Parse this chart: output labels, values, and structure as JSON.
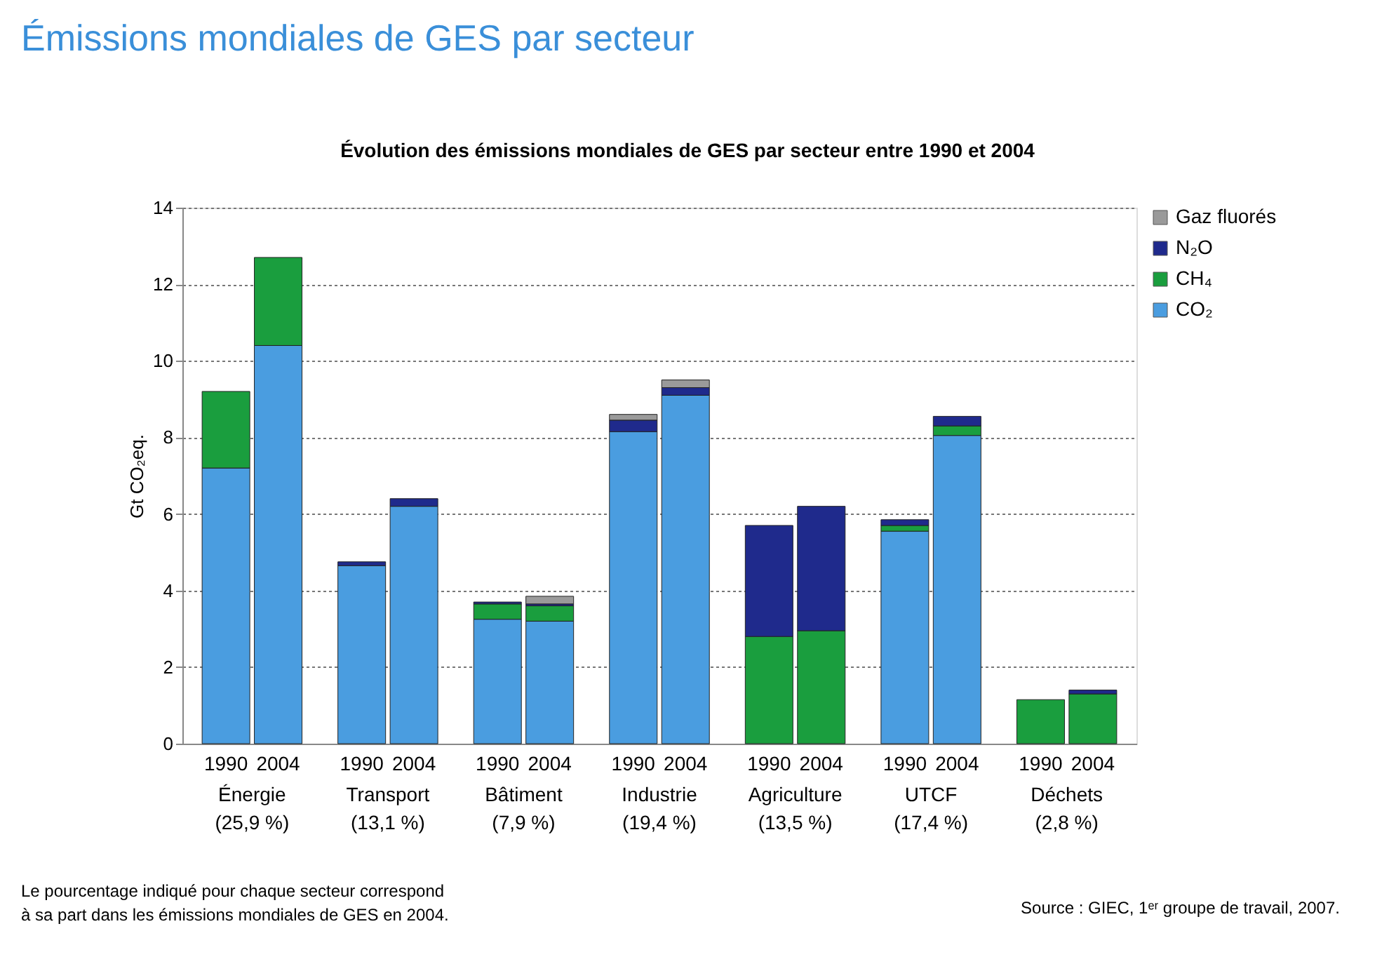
{
  "chart_data": {
    "type": "bar",
    "stacked": true,
    "title": "Émissions mondiales de GES par secteur",
    "subtitle": "Évolution des émissions mondiales de GES par secteur entre 1990 et 2004",
    "ylabel": "Gt CO₂eq.",
    "categories": [
      "1990",
      "2004",
      "1990",
      "2004",
      "1990",
      "2004",
      "1990",
      "2004",
      "1990",
      "2004",
      "1990",
      "2004",
      "1990",
      "2004"
    ],
    "series": [
      {
        "name": "CO₂",
        "color": "#4a9de0",
        "values": [
          7.2,
          10.4,
          4.65,
          6.2,
          3.25,
          3.2,
          8.15,
          9.1,
          null,
          null,
          5.55,
          8.05,
          null,
          null
        ]
      },
      {
        "name": "CH₄",
        "color": "#1a9e3e",
        "values": [
          2.0,
          2.3,
          null,
          null,
          0.4,
          0.4,
          null,
          null,
          2.8,
          2.95,
          0.15,
          0.25,
          1.15,
          1.3
        ]
      },
      {
        "name": "N₂O",
        "color": "#1f2a8c",
        "values": [
          null,
          null,
          0.1,
          0.2,
          0.05,
          0.05,
          0.3,
          0.2,
          2.9,
          3.25,
          0.15,
          0.25,
          null,
          0.1
        ]
      },
      {
        "name": "Gaz fluorés",
        "color": "#9a9a9a",
        "values": [
          null,
          null,
          null,
          null,
          null,
          0.2,
          0.15,
          0.2,
          null,
          null,
          null,
          null,
          null,
          null
        ]
      }
    ],
    "ylim": [
      0,
      14
    ],
    "yticks": [
      0,
      2,
      4,
      6,
      8,
      10,
      12,
      14
    ],
    "grid": "y",
    "legend": "top right",
    "annotations": [
      "Énergie\n(25,9 %)",
      "Transport\n(13,1 %)",
      "Bâtiment\n(7,9 %)",
      "Industrie\n(19,4 %)",
      "Agriculture\n(13,5 %)",
      "UTCF\n(17,4 %)",
      "Déchets\n(2,8 %)",
      "Le pourcentage indiqué pour chaque secteur correspond\nà sa part dans les émissions mondiales de GES en 2004.",
      "Source : GIEC, 1ᵉʳ groupe de travail, 2007."
    ]
  }
}
